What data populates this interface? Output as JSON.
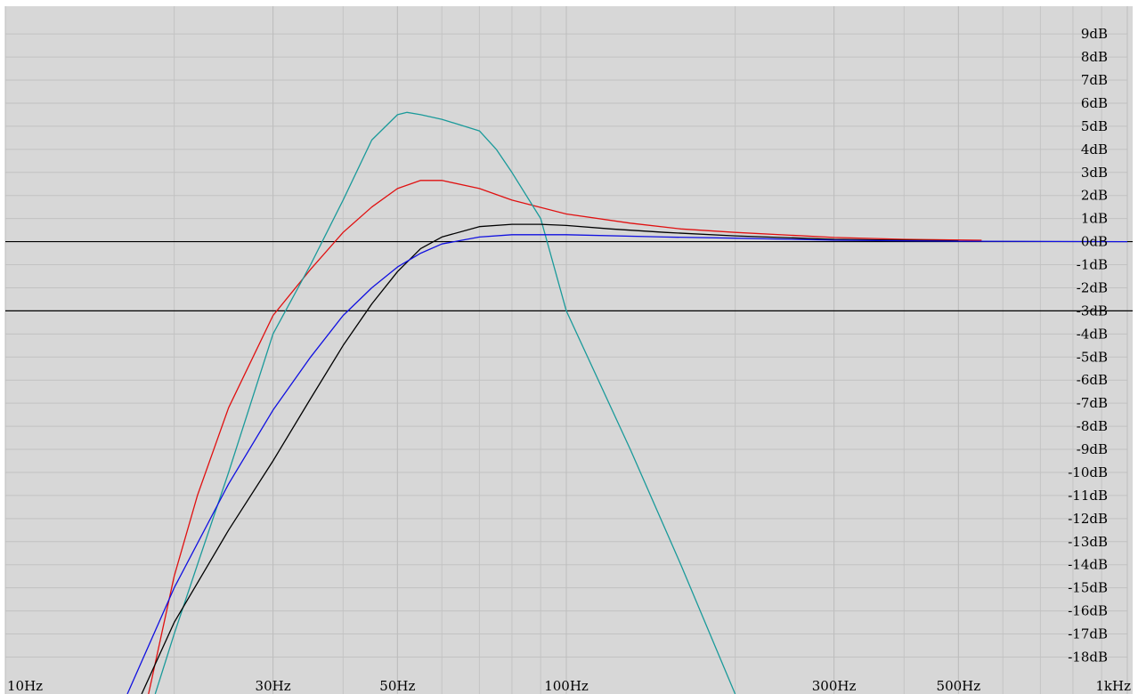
{
  "chart_data": {
    "type": "line",
    "xscale": "log",
    "xlim": [
      10,
      1000
    ],
    "ylim": [
      -19.6,
      10.2
    ],
    "grid": true,
    "x_ticks": [
      {
        "value": 10,
        "label": "10Hz"
      },
      {
        "value": 30,
        "label": "30Hz"
      },
      {
        "value": 50,
        "label": "50Hz"
      },
      {
        "value": 100,
        "label": "100Hz"
      },
      {
        "value": 300,
        "label": "300Hz"
      },
      {
        "value": 500,
        "label": "500Hz"
      },
      {
        "value": 1000,
        "label": "1kHz"
      }
    ],
    "y_ticks": [
      9,
      8,
      7,
      6,
      5,
      4,
      3,
      2,
      1,
      0,
      -1,
      -2,
      -3,
      -4,
      -5,
      -6,
      -7,
      -8,
      -9,
      -10,
      -11,
      -12,
      -13,
      -14,
      -15,
      -16,
      -17,
      -18
    ],
    "y_tick_labels": [
      "9dB",
      "8dB",
      "7dB",
      "6dB",
      "5dB",
      "4dB",
      "3dB",
      "2dB",
      "1dB",
      "0dB",
      "-1dB",
      "-2dB",
      "-3dB",
      "-4dB",
      "-5dB",
      "-6dB",
      "-7dB",
      "-8dB",
      "-9dB",
      "-10dB",
      "-11dB",
      "-12dB",
      "-13dB",
      "-14dB",
      "-15dB",
      "-16dB",
      "-17dB",
      "-18dB"
    ],
    "reference_lines": [
      0,
      -3
    ],
    "series": [
      {
        "color": "#e01010",
        "x": [
          18,
          20,
          22,
          25,
          30,
          35,
          40,
          45,
          50,
          55,
          60,
          70,
          80,
          100,
          130,
          160,
          200,
          300,
          400,
          550
        ],
        "y": [
          -19.6,
          -14.5,
          -11,
          -7.2,
          -3.2,
          -1.2,
          0.4,
          1.5,
          2.3,
          2.65,
          2.65,
          2.3,
          1.8,
          1.2,
          0.8,
          0.55,
          0.4,
          0.18,
          0.1,
          0.06
        ]
      },
      {
        "color": "#1a9a9a",
        "x": [
          18.5,
          20,
          22,
          25,
          30,
          35,
          40,
          45,
          50,
          52,
          55,
          60,
          70,
          75,
          80,
          90,
          100,
          130,
          160,
          200
        ],
        "y": [
          -19.6,
          -17,
          -14,
          -10,
          -4,
          -1,
          1.8,
          4.4,
          5.5,
          5.6,
          5.5,
          5.3,
          4.8,
          4,
          3,
          1,
          -3,
          -9,
          -14,
          -19.6
        ]
      },
      {
        "color": "#000000",
        "x": [
          17.5,
          20,
          25,
          30,
          35,
          40,
          45,
          50,
          55,
          60,
          70,
          80,
          90,
          100,
          120,
          150,
          200,
          300,
          500
        ],
        "y": [
          -19.6,
          -16.5,
          -12.5,
          -9.5,
          -6.8,
          -4.5,
          -2.7,
          -1.3,
          -0.3,
          0.2,
          0.65,
          0.75,
          0.75,
          0.7,
          0.55,
          0.4,
          0.25,
          0.1,
          0.03
        ]
      },
      {
        "color": "#1010e0",
        "x": [
          16.5,
          20,
          25,
          30,
          35,
          40,
          45,
          50,
          55,
          60,
          70,
          80,
          100,
          150,
          200,
          300,
          500,
          1000
        ],
        "y": [
          -19.6,
          -15,
          -10.5,
          -7.3,
          -5,
          -3.2,
          -2,
          -1.1,
          -0.5,
          -0.1,
          0.2,
          0.3,
          0.3,
          0.2,
          0.15,
          0.06,
          0.02,
          0
        ]
      }
    ]
  }
}
